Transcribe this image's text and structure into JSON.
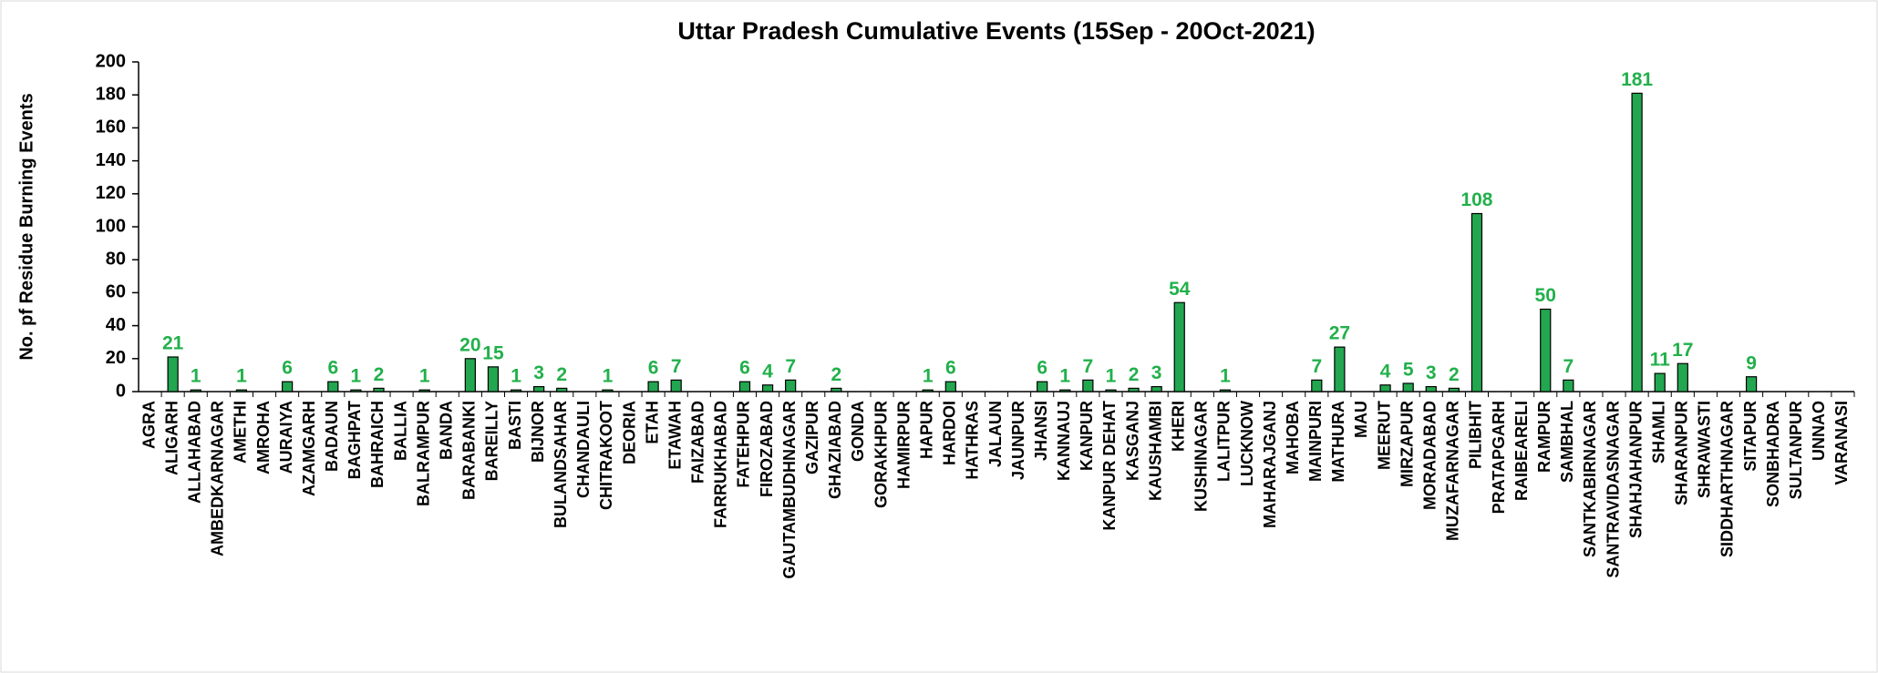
{
  "chart_data": {
    "type": "bar",
    "title": "Uttar Pradesh Cumulative Events (15Sep - 20Oct-2021)",
    "y_label": "No. pf Residue Burning Events",
    "categories": [
      "AGRA",
      "ALIGARH",
      "ALLAHABAD",
      "AMBEDKARNAGAR",
      "AMETHI",
      "AMROHA",
      "AURAIYA",
      "AZAMGARH",
      "BADAUN",
      "BAGHPAT",
      "BAHRAICH",
      "BALLIA",
      "BALRAMPUR",
      "BANDA",
      "BARABANKI",
      "BAREILLY",
      "BASTI",
      "BIJNOR",
      "BULANDSAHAR",
      "CHANDAULI",
      "CHITRAKOOT",
      "DEORIA",
      "ETAH",
      "ETAWAH",
      "FAIZABAD",
      "FARRUKHABAD",
      "FATEHPUR",
      "FIROZABAD",
      "GAUTAMBUDHNAGAR",
      "GAZIPUR",
      "GHAZIABAD",
      "GONDA",
      "GORAKHPUR",
      "HAMIRPUR",
      "HAPUR",
      "HARDOI",
      "HATHRAS",
      "JALAUN",
      "JAUNPUR",
      "JHANSI",
      "KANNAUJ",
      "KANPUR",
      "KANPUR DEHAT",
      "KASGANJ",
      "KAUSHAMBI",
      "KHERI",
      "KUSHINAGAR",
      "LALITPUR",
      "LUCKNOW",
      "MAHARAJGANJ",
      "MAHOBA",
      "MAINPURI",
      "MATHURA",
      "MAU",
      "MEERUT",
      "MIRZAPUR",
      "MORADABAD",
      "MUZAFARNAGAR",
      "PILIBHIT",
      "PRATAPGARH",
      "RAIBEARELI",
      "RAMPUR",
      "SAMBHAL",
      "SANTKABIRNAGAR",
      "SANTRAVIDASNAGAR",
      "SHAHJAHANPUR",
      "SHAMLI",
      "SHARANPUR",
      "SHRAWASTI",
      "SIDDHARTHNAGAR",
      "SITAPUR",
      "SONBHADRA",
      "SULTANPUR",
      "UNNAO",
      "VARANASI"
    ],
    "values": [
      0,
      21,
      1,
      0,
      1,
      0,
      6,
      0,
      6,
      1,
      2,
      0,
      1,
      0,
      20,
      15,
      1,
      3,
      2,
      0,
      1,
      0,
      6,
      7,
      0,
      0,
      6,
      4,
      7,
      0,
      2,
      0,
      0,
      0,
      1,
      6,
      0,
      0,
      0,
      6,
      1,
      7,
      1,
      2,
      3,
      54,
      0,
      1,
      0,
      0,
      0,
      7,
      27,
      0,
      4,
      5,
      3,
      2,
      108,
      0,
      0,
      50,
      7,
      0,
      0,
      181,
      11,
      17,
      0,
      0,
      9,
      0,
      0,
      0,
      0
    ],
    "color": "#22a650",
    "label_color": "#22b04b",
    "ylim": [
      0,
      200
    ],
    "yticks": [
      0,
      20,
      40,
      60,
      80,
      100,
      120,
      140,
      160,
      180,
      200
    ]
  }
}
